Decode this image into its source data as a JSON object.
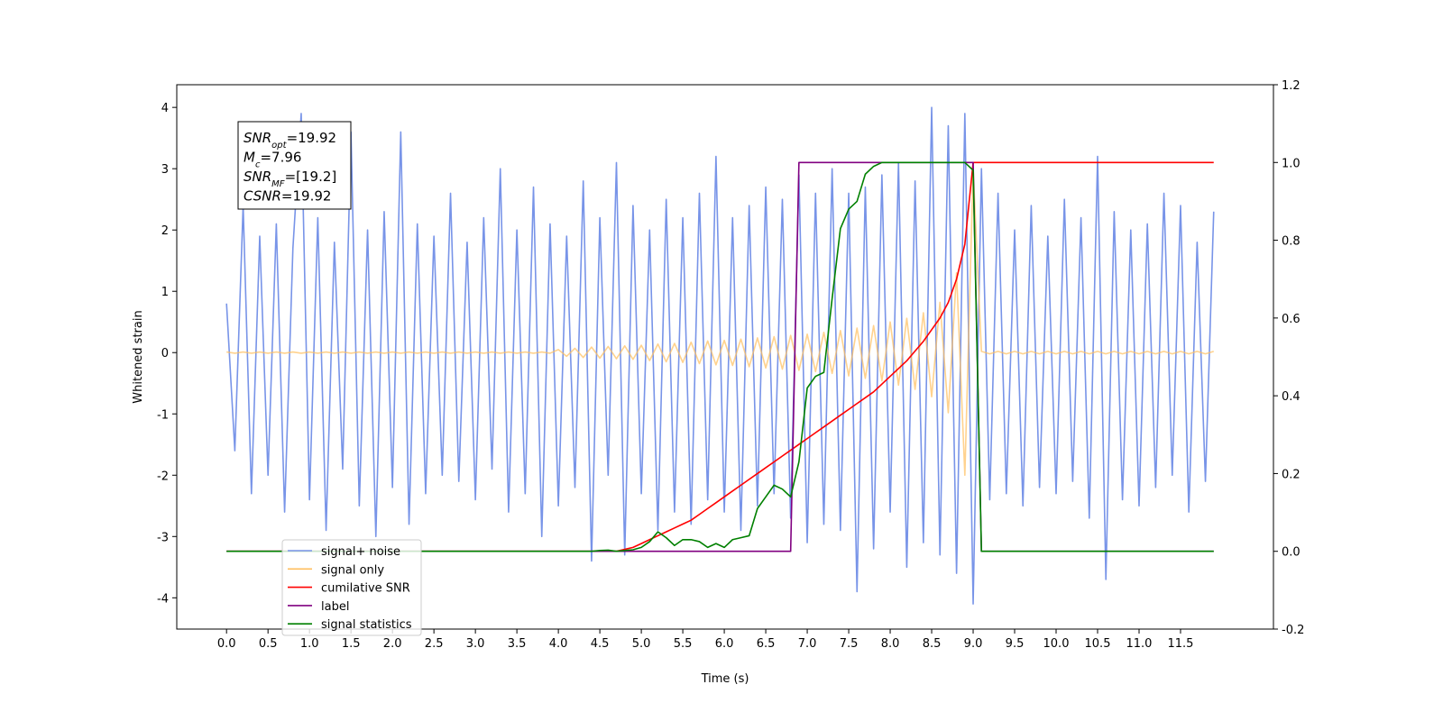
{
  "chart_data": {
    "type": "line",
    "xlabel": "Time (s)",
    "ylabel": "Whitened strain",
    "xlim": [
      -0.6,
      12.62
    ],
    "ylim": [
      -4.51,
      4.37
    ],
    "y2lim": [
      -0.2,
      1.2
    ],
    "xticks": [
      {
        "value": 0,
        "label": "0.0"
      },
      0.5,
      {
        "value": 1,
        "label": "1.0"
      },
      1.5,
      {
        "value": 2,
        "label": "2.0"
      },
      2.5,
      {
        "value": 3,
        "label": "3.0"
      },
      3.5,
      {
        "value": 4,
        "label": "4.0"
      },
      4.5,
      {
        "value": 5,
        "label": "5.0"
      },
      5.5,
      {
        "value": 6,
        "label": "6.0"
      },
      6.5,
      {
        "value": 7,
        "label": "7.0"
      },
      7.5,
      {
        "value": 8,
        "label": "8.0"
      },
      8.5,
      {
        "value": 9,
        "label": "9.0"
      },
      9.5,
      {
        "value": 10,
        "label": "10.0"
      },
      10.5,
      {
        "value": 11,
        "label": "11.0"
      },
      11.5
    ],
    "yticks": [
      -4,
      -3,
      -2,
      -1,
      0,
      1,
      2,
      3,
      4
    ],
    "y2ticks": [
      -0.2,
      {
        "value": 0,
        "label": "0.0"
      },
      0.2,
      0.4,
      0.6,
      0.8,
      {
        "value": 1,
        "label": "1.0"
      },
      1.2
    ],
    "grid": false,
    "legend": "lower left",
    "annotation": [
      {
        "main": "SNR",
        "sub": "opt",
        "rest": "=19.92"
      },
      {
        "main": "M",
        "sub": "c",
        "rest": "=7.96"
      },
      {
        "main": "SNR",
        "sub": "MF",
        "rest": "=[19.2]"
      },
      {
        "main": "CSNR",
        "rest": "=19.92"
      }
    ],
    "x": [
      0,
      0.1,
      0.2,
      0.3,
      0.4,
      0.5,
      0.6,
      0.7,
      0.8,
      0.9,
      1,
      1.1,
      1.2,
      1.3,
      1.4,
      1.5,
      1.6,
      1.7,
      1.8,
      1.9,
      2,
      2.1,
      2.2,
      2.3,
      2.4,
      2.5,
      2.6,
      2.7,
      2.8,
      2.9,
      3,
      3.1,
      3.2,
      3.3,
      3.4,
      3.5,
      3.6,
      3.7,
      3.8,
      3.9,
      4,
      4.1,
      4.2,
      4.3,
      4.4,
      4.5,
      4.6,
      4.7,
      4.8,
      4.9,
      5,
      5.1,
      5.2,
      5.3,
      5.4,
      5.5,
      5.6,
      5.7,
      5.8,
      5.9,
      6,
      6.1,
      6.2,
      6.3,
      6.4,
      6.5,
      6.6,
      6.7,
      6.8,
      6.9,
      7,
      7.1,
      7.2,
      7.3,
      7.4,
      7.5,
      7.6,
      7.7,
      7.8,
      7.9,
      8,
      8.1,
      8.2,
      8.3,
      8.4,
      8.5,
      8.6,
      8.7,
      8.8,
      8.9,
      9,
      9.1,
      9.2,
      9.3,
      9.4,
      9.5,
      9.6,
      9.7,
      9.8,
      9.9,
      10,
      10.1,
      10.2,
      10.3,
      10.4,
      10.5,
      10.6,
      10.7,
      10.8,
      10.9,
      11,
      11.1,
      11.2,
      11.3,
      11.4,
      11.5,
      11.6,
      11.7,
      11.8,
      11.9
    ],
    "series": [
      {
        "name": "signal+ noise",
        "color": "#7894e8",
        "values": [
          0.8,
          -1.6,
          2.4,
          -2.3,
          1.9,
          -2.0,
          2.1,
          -2.6,
          1.7,
          3.9,
          -2.4,
          2.2,
          -2.9,
          1.8,
          -1.9,
          3.6,
          -2.5,
          2.0,
          -3.0,
          2.3,
          -2.2,
          3.6,
          -2.8,
          2.1,
          -2.3,
          1.9,
          -2.0,
          2.6,
          -2.1,
          1.8,
          -2.4,
          2.2,
          -1.9,
          3.0,
          -2.6,
          2.0,
          -2.3,
          2.7,
          -3.0,
          2.1,
          -2.5,
          1.9,
          -2.2,
          2.8,
          -3.4,
          2.2,
          -2.0,
          3.1,
          -3.3,
          2.4,
          -2.3,
          2.0,
          -2.9,
          2.5,
          -2.6,
          2.2,
          -2.8,
          2.6,
          -2.4,
          3.2,
          -2.6,
          2.2,
          -2.9,
          2.4,
          -2.5,
          2.7,
          -2.3,
          2.5,
          -2.7,
          2.9,
          -3.1,
          2.6,
          -2.8,
          3.0,
          -2.9,
          2.6,
          -3.9,
          2.7,
          -3.2,
          2.9,
          -2.6,
          3.1,
          -3.5,
          2.8,
          -3.1,
          4.0,
          -3.3,
          3.7,
          -3.6,
          3.9,
          -4.1,
          3.0,
          -2.4,
          2.6,
          -2.3,
          2.0,
          -2.5,
          2.4,
          -2.2,
          1.9,
          -2.3,
          2.5,
          -2.1,
          2.2,
          -2.7,
          3.2,
          -3.7,
          2.3,
          -2.4,
          2.0,
          -2.5,
          2.1,
          -2.2,
          2.6,
          -2.0,
          2.4,
          -2.6,
          1.8,
          -2.1,
          2.3
        ]
      },
      {
        "name": "signal only",
        "color": "#ffbf5e",
        "values": [
          0.01,
          -0.01,
          0.01,
          -0.01,
          0.01,
          -0.01,
          0.01,
          -0.01,
          0.01,
          -0.01,
          0.01,
          -0.01,
          0.01,
          -0.01,
          0.01,
          -0.01,
          0.01,
          -0.01,
          0.01,
          -0.01,
          0.01,
          -0.01,
          0.01,
          -0.01,
          0.01,
          -0.01,
          0.01,
          -0.01,
          0.01,
          -0.01,
          0.01,
          -0.01,
          0.01,
          -0.01,
          0.01,
          -0.01,
          0.01,
          -0.01,
          0.01,
          -0.01,
          0.05,
          -0.06,
          0.07,
          -0.08,
          0.09,
          -0.09,
          0.1,
          -0.1,
          0.11,
          -0.11,
          0.12,
          -0.13,
          0.14,
          -0.15,
          0.15,
          -0.16,
          0.17,
          -0.18,
          0.19,
          -0.2,
          0.2,
          -0.21,
          0.22,
          -0.23,
          0.24,
          -0.25,
          0.26,
          -0.27,
          0.28,
          -0.29,
          0.3,
          -0.31,
          0.33,
          -0.34,
          0.36,
          -0.38,
          0.4,
          -0.42,
          0.44,
          -0.46,
          0.5,
          -0.53,
          0.56,
          -0.6,
          0.65,
          -0.72,
          0.82,
          -0.98,
          1.3,
          -2.0,
          3.0,
          0.02,
          -0.02,
          0.02,
          -0.02,
          0.02,
          -0.02,
          0.02,
          -0.02,
          0.02,
          -0.02,
          0.02,
          -0.02,
          0.02,
          -0.02,
          0.02,
          -0.02,
          0.02,
          -0.02,
          0.02,
          -0.02,
          0.02,
          -0.02,
          0.02,
          -0.02,
          0.02,
          -0.02,
          0.02,
          -0.02,
          0.02
        ]
      },
      {
        "name": "cumilative SNR",
        "color": "#ff0000",
        "axis": "y2",
        "values": [
          0,
          0,
          0,
          0,
          0,
          0,
          0,
          0,
          0,
          0,
          0,
          0,
          0,
          0,
          0,
          0,
          0,
          0,
          0,
          0,
          0,
          0,
          0,
          0,
          0,
          0,
          0,
          0,
          0,
          0,
          0,
          0,
          0,
          0,
          0,
          0,
          0,
          0,
          0,
          0,
          0,
          0,
          0,
          0,
          0,
          0,
          0,
          0,
          0.005,
          0.01,
          0.02,
          0.03,
          0.04,
          0.05,
          0.06,
          0.07,
          0.08,
          0.095,
          0.11,
          0.125,
          0.14,
          0.155,
          0.17,
          0.185,
          0.2,
          0.215,
          0.23,
          0.245,
          0.26,
          0.275,
          0.29,
          0.305,
          0.32,
          0.335,
          0.35,
          0.365,
          0.38,
          0.395,
          0.41,
          0.43,
          0.45,
          0.47,
          0.49,
          0.515,
          0.54,
          0.57,
          0.6,
          0.64,
          0.7,
          0.79,
          1,
          1,
          1,
          1,
          1,
          1,
          1,
          1,
          1,
          1,
          1,
          1,
          1,
          1,
          1,
          1,
          1,
          1,
          1,
          1,
          1,
          1,
          1,
          1,
          1,
          1,
          1,
          1,
          1,
          1
        ]
      },
      {
        "name": "label",
        "color": "#800080",
        "axis": "y2",
        "values": [
          0,
          0,
          0,
          0,
          0,
          0,
          0,
          0,
          0,
          0,
          0,
          0,
          0,
          0,
          0,
          0,
          0,
          0,
          0,
          0,
          0,
          0,
          0,
          0,
          0,
          0,
          0,
          0,
          0,
          0,
          0,
          0,
          0,
          0,
          0,
          0,
          0,
          0,
          0,
          0,
          0,
          0,
          0,
          0,
          0,
          0,
          0,
          0,
          0,
          0,
          0,
          0,
          0,
          0,
          0,
          0,
          0,
          0,
          0,
          0,
          0,
          0,
          0,
          0,
          0,
          0,
          0,
          0,
          0,
          1,
          1,
          1,
          1,
          1,
          1,
          1,
          1,
          1,
          1,
          1,
          1,
          1,
          1,
          1,
          1,
          1,
          1,
          1,
          1,
          1,
          1,
          0,
          0,
          0,
          0,
          0,
          0,
          0,
          0,
          0,
          0,
          0,
          0,
          0,
          0,
          0,
          0,
          0,
          0,
          0,
          0,
          0,
          0,
          0,
          0,
          0,
          0,
          0,
          0,
          0
        ]
      },
      {
        "name": "signal statistics",
        "color": "#008000",
        "axis": "y2",
        "values": [
          0,
          0,
          0,
          0,
          0,
          0,
          0,
          0,
          0,
          0,
          0,
          0,
          0,
          0,
          0,
          0,
          0,
          0,
          0,
          0,
          0,
          0,
          0,
          0,
          0,
          0,
          0,
          0,
          0,
          0,
          0,
          0,
          0,
          0,
          0,
          0,
          0,
          0,
          0,
          0,
          0,
          0,
          0,
          0,
          0,
          0.002,
          0.003,
          0,
          0.002,
          0.004,
          0.01,
          0.025,
          0.05,
          0.035,
          0.015,
          0.03,
          0.03,
          0.025,
          0.01,
          0.02,
          0.01,
          0.03,
          0.035,
          0.04,
          0.11,
          0.14,
          0.17,
          0.16,
          0.14,
          0.23,
          0.42,
          0.45,
          0.46,
          0.65,
          0.83,
          0.88,
          0.9,
          0.97,
          0.99,
          1,
          1,
          1,
          1,
          1,
          1,
          1,
          1,
          1,
          1,
          1,
          0.98,
          0,
          0,
          0,
          0,
          0,
          0,
          0,
          0,
          0,
          0,
          0,
          0,
          0,
          0,
          0,
          0,
          0,
          0,
          0,
          0,
          0,
          0,
          0,
          0,
          0,
          0,
          0,
          0,
          0
        ]
      }
    ]
  }
}
